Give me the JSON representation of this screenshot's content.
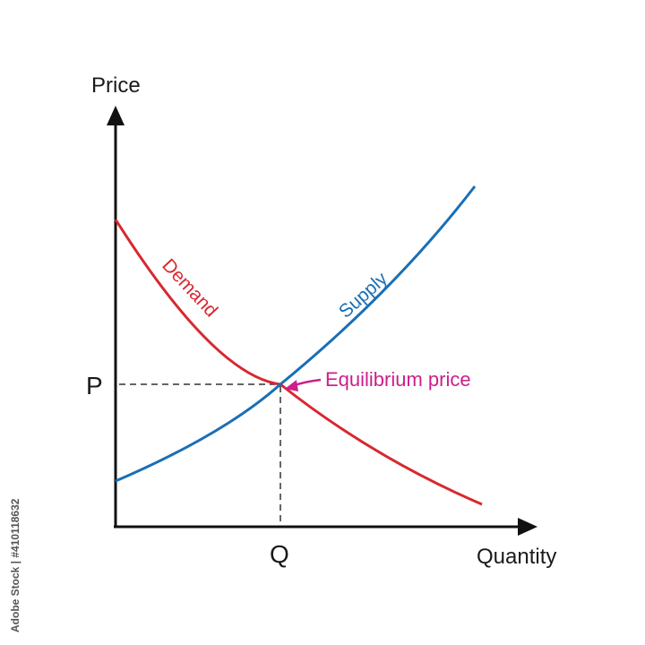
{
  "diagram": {
    "axes": {
      "y_label": "Price",
      "x_label": "Quantity"
    },
    "ticks": {
      "p_label": "P",
      "q_label": "Q"
    },
    "curves": {
      "demand_label": "Demand",
      "supply_label": "Supply"
    },
    "annotation": "Equilibrium price",
    "colors": {
      "demand": "#d7282f",
      "supply": "#1a6fb5",
      "annotation": "#cc1f8a",
      "axes": "#111111",
      "guides": "#333333"
    }
  },
  "watermark": "Adobe Stock | #410118632"
}
